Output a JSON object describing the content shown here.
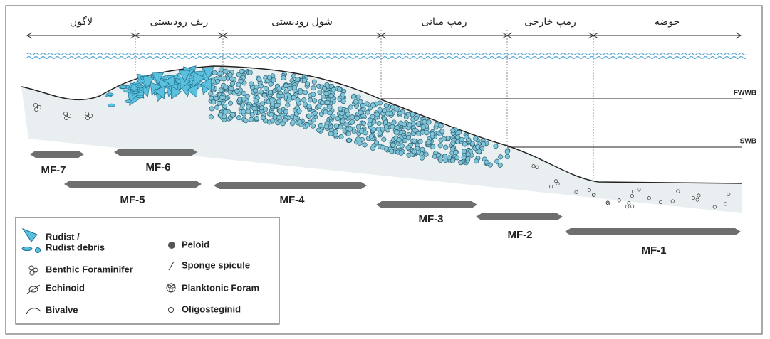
{
  "zones": [
    "لاگون",
    "ریف رودیستی",
    "شول رودیستی",
    "رمپ میانی",
    "رمپ خارجی",
    "حوضه"
  ],
  "levels": [
    "FWWB",
    "SWB"
  ],
  "facies": [
    "MF-7",
    "MF-6",
    "MF-5",
    "MF-4",
    "MF-3",
    "MF-2",
    "MF-1"
  ],
  "legend": {
    "left": [
      [
        "Rudist /",
        "Rudist debris"
      ],
      [
        "Benthic Foraminifer"
      ],
      [
        "Echinoid"
      ],
      [
        "Bivalve"
      ]
    ],
    "right": [
      "Peloid",
      "Sponge spicule",
      "Planktonic Foram",
      "Oligosteginid"
    ]
  }
}
